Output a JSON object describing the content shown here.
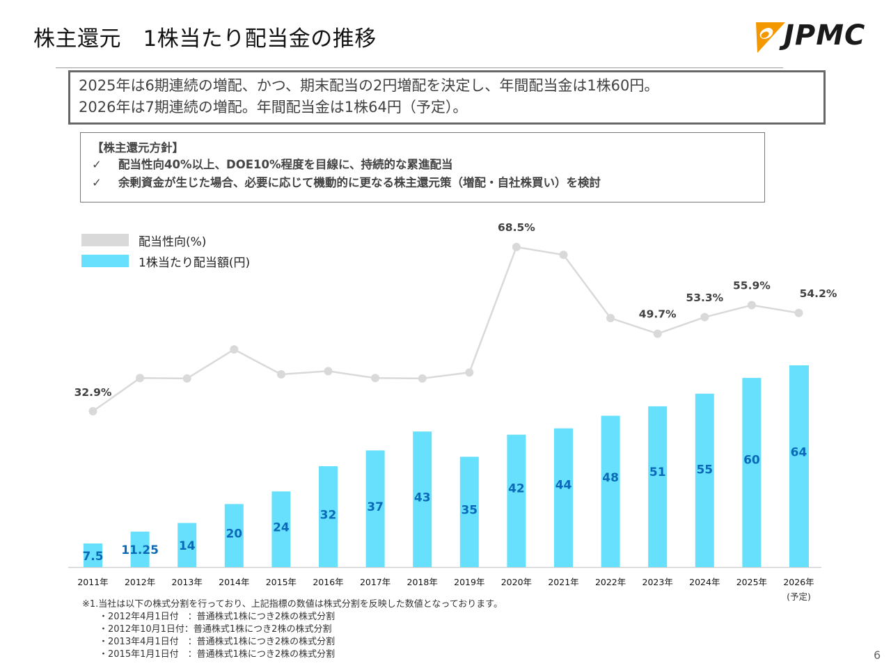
{
  "page": {
    "title": "株主還元　1株当たり配当金の推移",
    "logo_text": "JPMC",
    "page_number": "6",
    "brand_colors": {
      "logo_orange": "#f39800",
      "logo_black": "#1a1a1a"
    }
  },
  "summary": {
    "lines": [
      "2025年は6期連続の増配、かつ、期末配当の2円増配を決定し、年間配当金は1株60円。",
      "2026年は7期連続の増配。年間配当金は1株64円（予定）。"
    ]
  },
  "policy": {
    "heading": "【株主還元方針】",
    "check_glyph": "✓",
    "items": [
      "配当性向40%以上、DOE10%程度を目線に、持続的な累進配当",
      "余剰資金が生じた場合、必要に応じて機動的に更なる株主還元策（増配・自社株買い）を検討"
    ]
  },
  "legend": {
    "items": [
      {
        "label": "配当性向(%)",
        "color": "#d9d9d9"
      },
      {
        "label": "1株当たり配当額(円)",
        "color": "#66e0fc"
      }
    ]
  },
  "chart_data": {
    "type": "bar",
    "title": "",
    "xlabel": "",
    "ylabel": "",
    "grid": false,
    "legend_position": "top-left",
    "categories": [
      "2011年",
      "2012年",
      "2013年",
      "2014年",
      "2015年",
      "2016年",
      "2017年",
      "2018年",
      "2019年",
      "2020年",
      "2021年",
      "2022年",
      "2023年",
      "2024年",
      "2025年",
      "2026年"
    ],
    "category_sublabels": [
      "",
      "",
      "",
      "",
      "",
      "",
      "",
      "",
      "",
      "",
      "",
      "",
      "",
      "",
      "",
      "(予定)"
    ],
    "series": [
      {
        "name": "1株当たり配当額(円)",
        "type": "bar",
        "color": "#66e0fc",
        "label_color": "#0a6ab8",
        "values": [
          7.5,
          11.25,
          14,
          20,
          24,
          32,
          37,
          43,
          35,
          42,
          44,
          48,
          51,
          55,
          60,
          64
        ],
        "labels": [
          "7.5",
          "11.25",
          "14",
          "20",
          "24",
          "32",
          "37",
          "43",
          "35",
          "42",
          "44",
          "48",
          "51",
          "55",
          "60",
          "64"
        ],
        "ylim": [
          0,
          64
        ]
      },
      {
        "name": "配当性向(%)",
        "type": "line",
        "color": "#d9d9d9",
        "label_color": "#404040",
        "values": [
          32.9,
          40.1,
          40.0,
          46.3,
          40.9,
          41.6,
          40.1,
          40.0,
          41.3,
          68.5,
          66.8,
          53.1,
          49.7,
          53.3,
          55.9,
          54.2
        ],
        "labels": [
          "32.9%",
          "",
          "",
          "",
          "",
          "",
          "",
          "",
          "",
          "68.5%",
          "",
          "",
          "49.7%",
          "53.3%",
          "55.9%",
          "54.2%"
        ],
        "ylim": [
          32.9,
          68.5
        ]
      }
    ]
  },
  "footnote": {
    "main": "※1.当社は以下の株式分割を行っており、上記指標の数値は株式分割を反映した数値となっております。",
    "items": [
      "・2012年4月1日付　：普通株式1株につき2株の株式分割",
      "・2012年10月1日付：普通株式1株につき2株の株式分割",
      "・2013年4月1日付　：普通株式1株につき2株の株式分割",
      "・2015年1月1日付　：普通株式1株につき2株の株式分割"
    ]
  }
}
